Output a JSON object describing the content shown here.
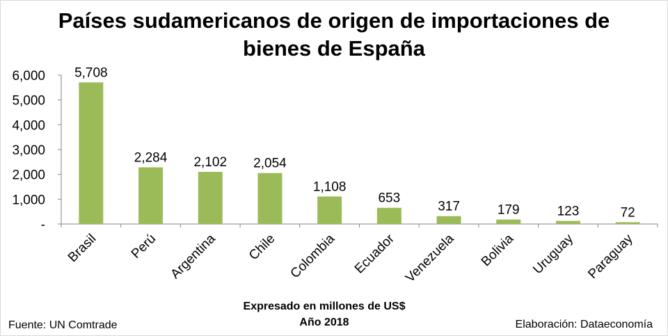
{
  "chart_data": {
    "type": "bar",
    "title_lines": [
      "Países sudamericanos de origen de importaciones de",
      "bienes de España"
    ],
    "categories": [
      "Brasil",
      "Perú",
      "Argentina",
      "Chile",
      "Colombia",
      "Ecuador",
      "Venezuela",
      "Bolivia",
      "Uruguay",
      "Paraguay"
    ],
    "values": [
      5708,
      2284,
      2102,
      2054,
      1108,
      653,
      317,
      179,
      123,
      72
    ],
    "data_labels": [
      "5,708",
      "2,284",
      "2,102",
      "2,054",
      "1,108",
      "653",
      "317",
      "179",
      "123",
      "72"
    ],
    "y_ticks": [
      {
        "value": 0,
        "label": "-"
      },
      {
        "value": 1000,
        "label": "1,000"
      },
      {
        "value": 2000,
        "label": "2,000"
      },
      {
        "value": 3000,
        "label": "3,000"
      },
      {
        "value": 4000,
        "label": "4,000"
      },
      {
        "value": 5000,
        "label": "5,000"
      },
      {
        "value": 6000,
        "label": "6,000"
      }
    ],
    "ylim": [
      0,
      6000
    ],
    "xlabel_lines": [
      "Expresado en millones de US$",
      "Año 2018"
    ],
    "bar_color": "#9bbb59",
    "grid": false,
    "legend": "none"
  },
  "footer": {
    "source": "Fuente: UN Comtrade",
    "credit": "Elaboración: Dataeconomía"
  }
}
